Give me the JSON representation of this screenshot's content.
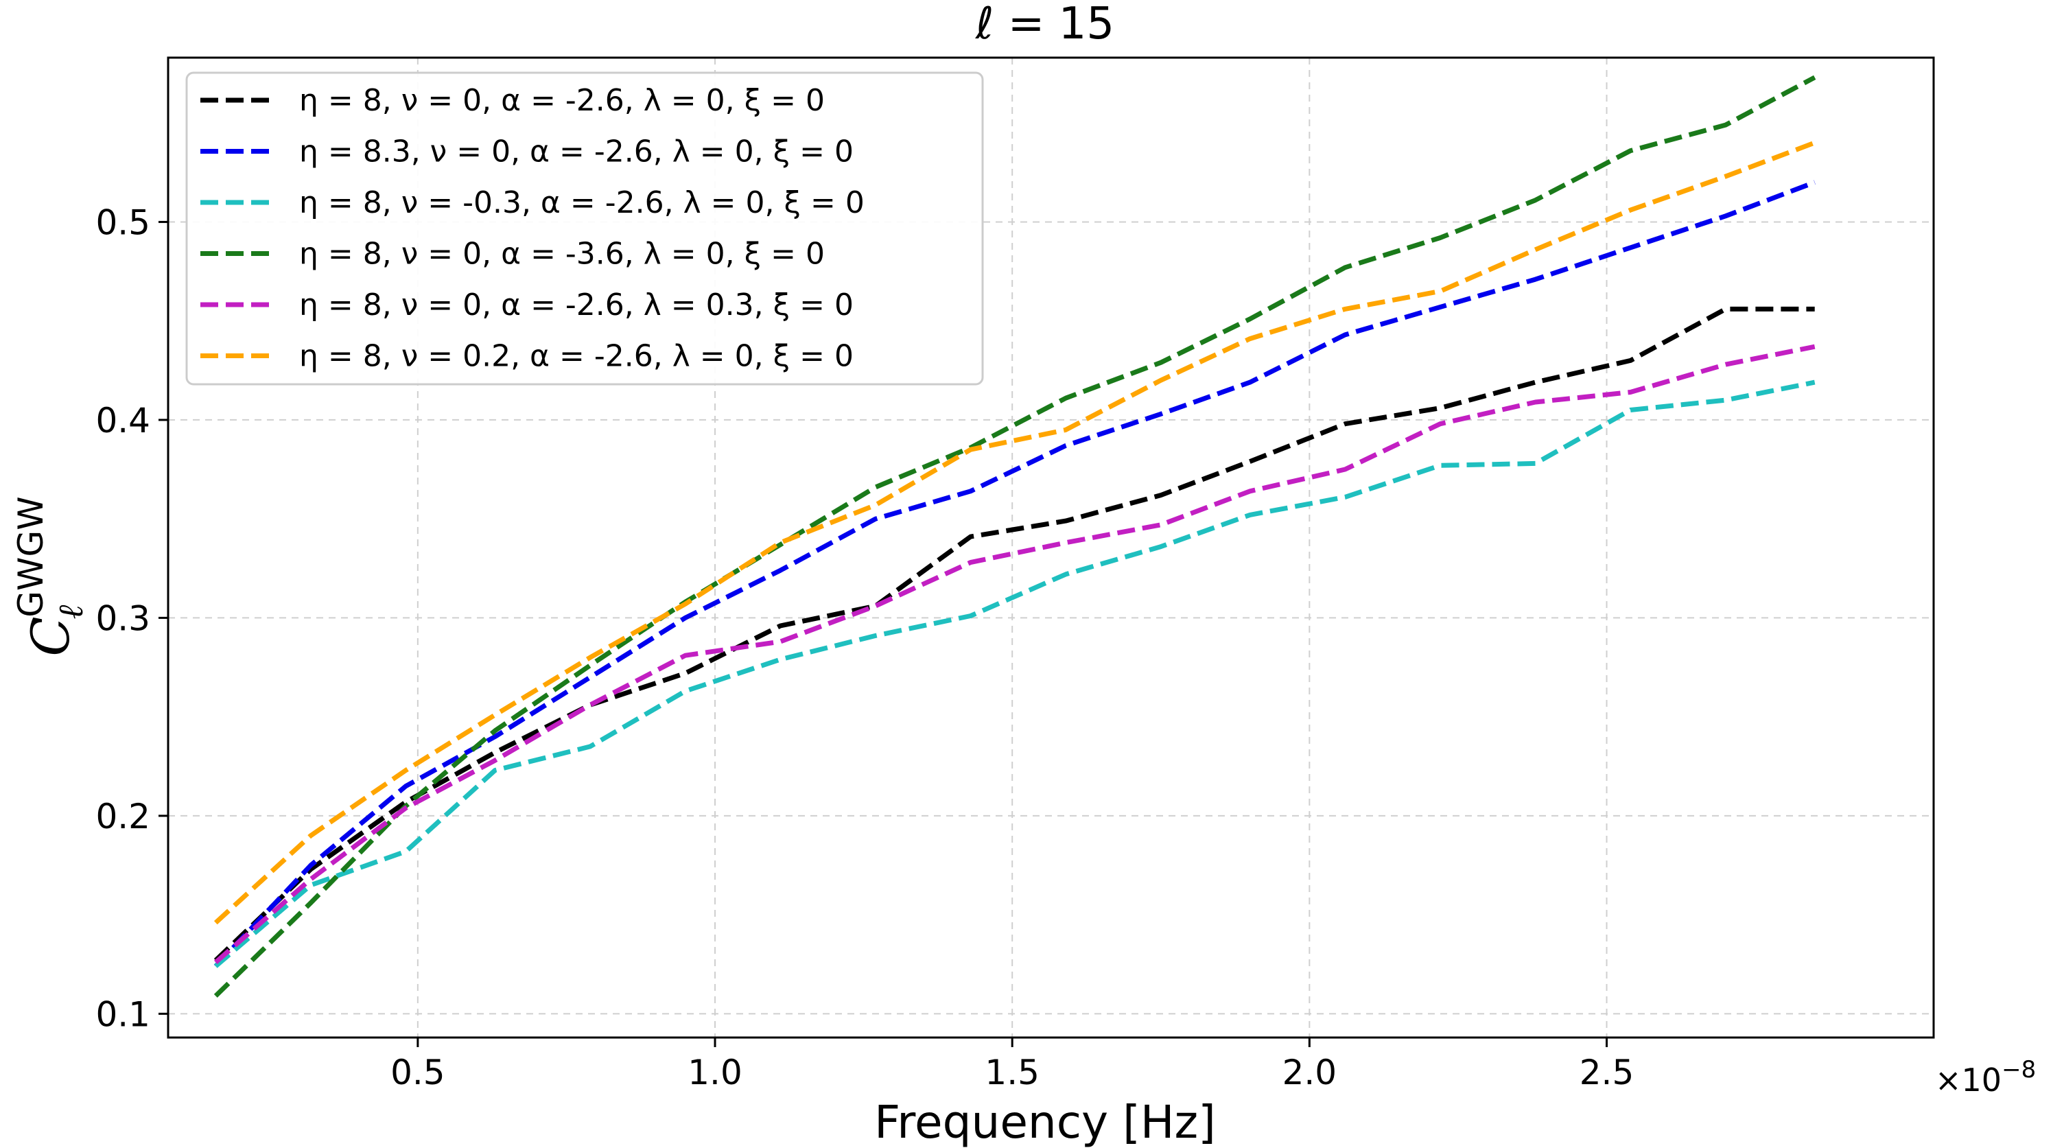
{
  "chart_data": {
    "type": "line",
    "title": "ℓ = 15",
    "xlabel": "Frequency [Hz]",
    "ylabel": "C",
    "ylabel_sub": "ℓ",
    "ylabel_sup": "GWGW",
    "x_offset_label": "×10",
    "x_offset_exp": "−8",
    "xlim": [
      0.08,
      3.05
    ],
    "ylim": [
      0.088,
      0.583
    ],
    "x_ticks": [
      0.5,
      1.0,
      1.5,
      2.0,
      2.5
    ],
    "x_tick_labels": [
      "0.5",
      "1.0",
      "1.5",
      "2.0",
      "2.5"
    ],
    "y_ticks": [
      0.1,
      0.2,
      0.3,
      0.4,
      0.5
    ],
    "y_tick_labels": [
      "0.1",
      "0.2",
      "0.3",
      "0.4",
      "0.5"
    ],
    "grid": true,
    "legend_position": "top-left",
    "x": [
      0.16,
      0.32,
      0.48,
      0.63,
      0.79,
      0.95,
      1.11,
      1.27,
      1.43,
      1.59,
      1.75,
      1.9,
      2.06,
      2.22,
      2.38,
      2.54,
      2.7,
      2.85
    ],
    "series": [
      {
        "name": "η = 8, ν = 0, α = -2.6, λ = 0, ξ = 0",
        "color": "#000000",
        "values": [
          0.127,
          0.173,
          0.207,
          0.232,
          0.256,
          0.272,
          0.296,
          0.306,
          0.341,
          0.349,
          0.362,
          0.379,
          0.398,
          0.406,
          0.419,
          0.43,
          0.456,
          0.456
        ]
      },
      {
        "name": "η = 8.3, ν = 0, α = -2.6, λ = 0, ξ = 0",
        "color": "#0000ee",
        "values": [
          0.124,
          0.175,
          0.215,
          0.24,
          0.27,
          0.3,
          0.324,
          0.35,
          0.364,
          0.387,
          0.403,
          0.419,
          0.443,
          0.457,
          0.471,
          0.487,
          0.503,
          0.52
        ]
      },
      {
        "name": "η = 8, ν = -0.3, α = -2.6, λ = 0, ξ = 0",
        "color": "#1fbfbf",
        "values": [
          0.124,
          0.165,
          0.182,
          0.223,
          0.235,
          0.263,
          0.279,
          0.291,
          0.301,
          0.322,
          0.336,
          0.352,
          0.361,
          0.377,
          0.378,
          0.405,
          0.41,
          0.419
        ]
      },
      {
        "name": "η = 8, ν = 0, α = -3.6, λ = 0, ξ = 0",
        "color": "#1a7a1a",
        "values": [
          0.109,
          0.156,
          0.205,
          0.243,
          0.276,
          0.308,
          0.337,
          0.366,
          0.386,
          0.411,
          0.429,
          0.451,
          0.477,
          0.492,
          0.511,
          0.536,
          0.549,
          0.573
        ]
      },
      {
        "name": "η = 8, ν = 0, α = -2.6, λ = 0.3, ξ = 0",
        "color": "#c21fc2",
        "values": [
          0.126,
          0.168,
          0.204,
          0.228,
          0.256,
          0.281,
          0.288,
          0.306,
          0.328,
          0.338,
          0.347,
          0.364,
          0.375,
          0.398,
          0.409,
          0.414,
          0.428,
          0.437
        ]
      },
      {
        "name": "η = 8, ν = 0.2, α = -2.6, λ = 0, ξ = 0",
        "color": "#ffa500",
        "values": [
          0.146,
          0.19,
          0.223,
          0.251,
          0.28,
          0.307,
          0.338,
          0.357,
          0.385,
          0.395,
          0.42,
          0.441,
          0.456,
          0.465,
          0.486,
          0.506,
          0.523,
          0.54
        ]
      }
    ]
  }
}
